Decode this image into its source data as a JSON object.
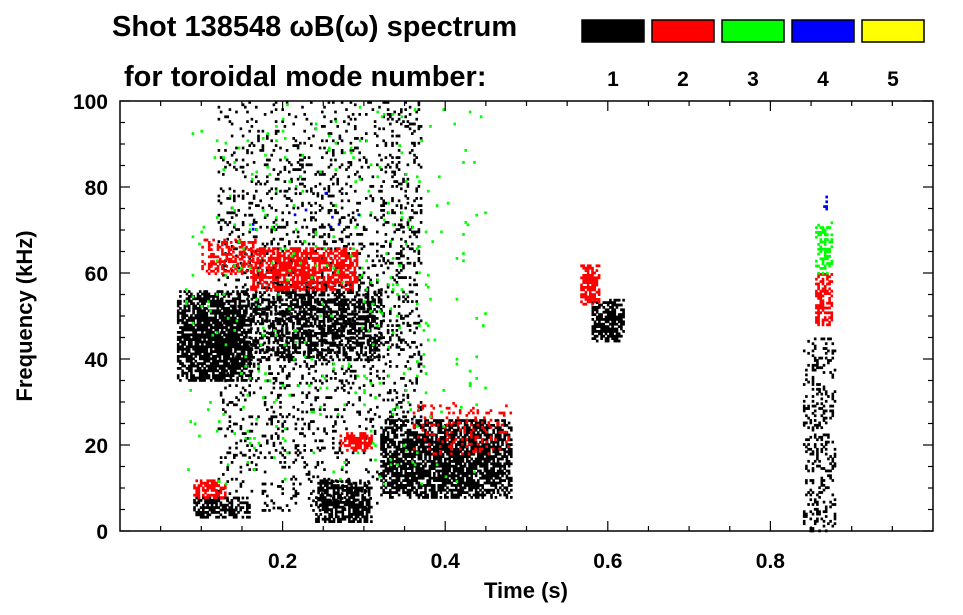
{
  "chart_data": {
    "type": "heatmap",
    "title_line1": "Shot 138548 ωB(ω) spectrum",
    "title_line2": "for toroidal mode number:",
    "xlabel": "Time (s)",
    "ylabel": "Frequency (kHz)",
    "xlim": [
      0.0,
      1.0
    ],
    "ylim": [
      0,
      100
    ],
    "x_ticks": [
      0.2,
      0.4,
      0.6,
      0.8
    ],
    "x_tick_labels": [
      "0.2",
      "0.4",
      "0.6",
      "0.8"
    ],
    "y_ticks": [
      0,
      20,
      40,
      60,
      80,
      100
    ],
    "y_tick_labels": [
      "0",
      "20",
      "40",
      "60",
      "80",
      "100"
    ],
    "legend": {
      "placement": "top-right",
      "entries": [
        {
          "label": "1",
          "color": "#000000"
        },
        {
          "label": "2",
          "color": "#ff0000"
        },
        {
          "label": "3",
          "color": "#00ff00"
        },
        {
          "label": "4",
          "color": "#0000ff"
        },
        {
          "label": "5",
          "color": "#ffff00"
        }
      ]
    },
    "regions": [
      {
        "name": "n1-band-early",
        "mode": "1",
        "t": [
          0.07,
          0.16
        ],
        "f": [
          35,
          56
        ],
        "density": 0.9
      },
      {
        "name": "n1-band-mid",
        "mode": "1",
        "t": [
          0.16,
          0.32
        ],
        "f": [
          40,
          58
        ],
        "density": 0.6
      },
      {
        "name": "n1-spikes-early",
        "mode": "1",
        "t": [
          0.12,
          0.32
        ],
        "f": [
          5,
          100
        ],
        "density": 0.15
      },
      {
        "name": "n1-low-early",
        "mode": "1",
        "t": [
          0.09,
          0.16
        ],
        "f": [
          3,
          8
        ],
        "density": 0.7
      },
      {
        "name": "n1-low-mid",
        "mode": "1",
        "t": [
          0.24,
          0.31
        ],
        "f": [
          2,
          12
        ],
        "density": 0.7
      },
      {
        "name": "n1-lowband-late",
        "mode": "1",
        "t": [
          0.32,
          0.48
        ],
        "f": [
          8,
          26
        ],
        "density": 0.85
      },
      {
        "name": "n1-spikes-late",
        "mode": "1",
        "t": [
          0.32,
          0.37
        ],
        "f": [
          25,
          100
        ],
        "density": 0.2
      },
      {
        "name": "n1-chirp",
        "mode": "1",
        "t": [
          0.58,
          0.62
        ],
        "f": [
          44,
          54
        ],
        "density": 0.8
      },
      {
        "name": "n1-late-burst",
        "mode": "1",
        "t": [
          0.84,
          0.88
        ],
        "f": [
          0,
          45
        ],
        "density": 0.3
      },
      {
        "name": "n2-band-early",
        "mode": "2",
        "t": [
          0.1,
          0.17
        ],
        "f": [
          60,
          68
        ],
        "density": 0.5
      },
      {
        "name": "n2-band-mid",
        "mode": "2",
        "t": [
          0.16,
          0.29
        ],
        "f": [
          56,
          66
        ],
        "density": 0.8
      },
      {
        "name": "n2-low-early",
        "mode": "2",
        "t": [
          0.09,
          0.13
        ],
        "f": [
          8,
          12
        ],
        "density": 0.6
      },
      {
        "name": "n2-mid-low",
        "mode": "2",
        "t": [
          0.27,
          0.31
        ],
        "f": [
          19,
          23
        ],
        "density": 0.8
      },
      {
        "name": "n2-lowband-late",
        "mode": "2",
        "t": [
          0.36,
          0.48
        ],
        "f": [
          18,
          30
        ],
        "density": 0.2
      },
      {
        "name": "n2-spot",
        "mode": "2",
        "t": [
          0.566,
          0.59
        ],
        "f": [
          53,
          62
        ],
        "density": 0.9
      },
      {
        "name": "n2-late",
        "mode": "2",
        "t": [
          0.855,
          0.875
        ],
        "f": [
          48,
          60
        ],
        "density": 0.6
      },
      {
        "name": "n3-late",
        "mode": "3",
        "t": [
          0.855,
          0.875
        ],
        "f": [
          60,
          72
        ],
        "density": 0.5
      },
      {
        "name": "n3-scatter",
        "mode": "3",
        "t": [
          0.08,
          0.45
        ],
        "f": [
          10,
          100
        ],
        "density": 0.02
      },
      {
        "name": "n4-late",
        "mode": "4",
        "t": [
          0.865,
          0.87
        ],
        "f": [
          75,
          78
        ],
        "density": 0.7
      },
      {
        "name": "n4-scatter",
        "mode": "4",
        "t": [
          0.1,
          0.3
        ],
        "f": [
          70,
          80
        ],
        "density": 0.01
      }
    ]
  }
}
